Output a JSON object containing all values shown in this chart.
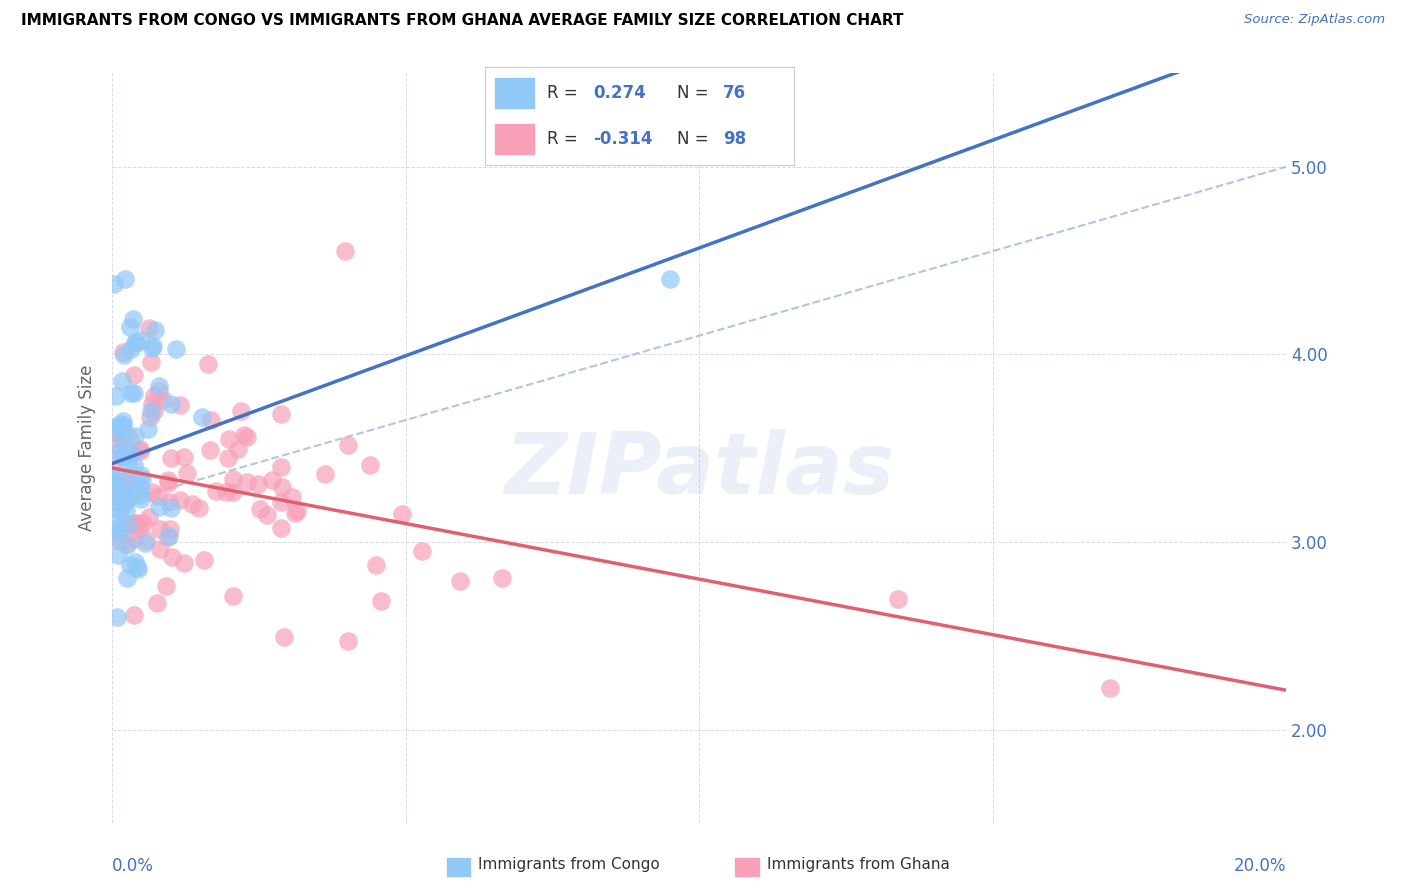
{
  "title": "IMMIGRANTS FROM CONGO VS IMMIGRANTS FROM GHANA AVERAGE FAMILY SIZE CORRELATION CHART",
  "source": "Source: ZipAtlas.com",
  "ylabel": "Average Family Size",
  "xlim": [
    0.0,
    0.2
  ],
  "ylim": [
    1.5,
    5.5
  ],
  "yticks": [
    2.0,
    3.0,
    4.0,
    5.0
  ],
  "xticks": [
    0.0,
    0.05,
    0.1,
    0.15,
    0.2
  ],
  "xticklabels": [
    "",
    "",
    "",
    "",
    ""
  ],
  "right_ytick_labels": [
    "2.00",
    "3.00",
    "4.00",
    "5.00"
  ],
  "congo_R": 0.274,
  "congo_N": 76,
  "ghana_R": -0.314,
  "ghana_N": 98,
  "congo_color": "#90c8f8",
  "ghana_color": "#f7a0b8",
  "congo_line_color": "#4472c4",
  "ghana_line_color": "#e06070",
  "dash_line_color": "#a0bce0",
  "background_color": "#ffffff",
  "title_color": "#000000",
  "axis_color": "#4472c4",
  "watermark_text": "ZIPatlas",
  "watermark_color": "#4472c4",
  "watermark_alpha": 0.1,
  "legend_congo_label": "Immigrants from Congo",
  "legend_ghana_label": "Immigrants from Ghana",
  "bottom_left_label": "0.0%",
  "bottom_right_label": "20.0%"
}
